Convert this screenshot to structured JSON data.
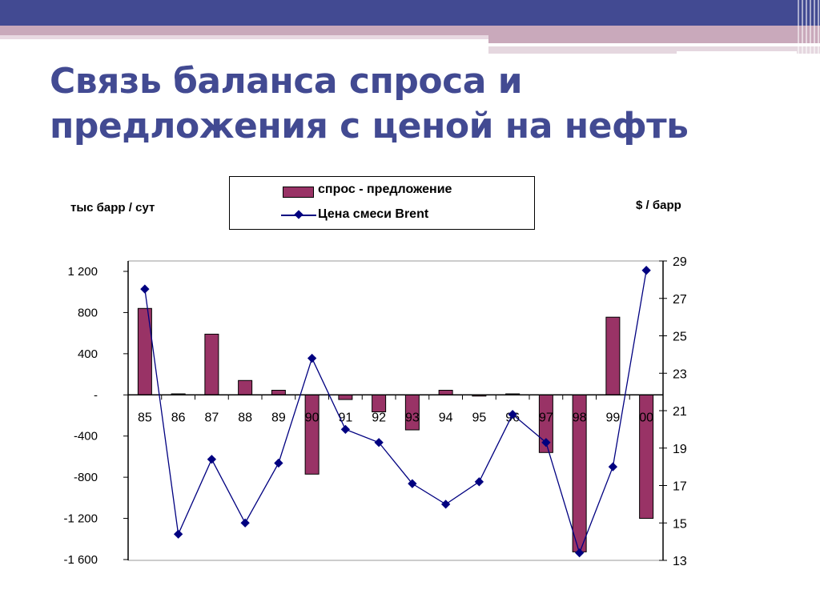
{
  "slide": {
    "title_line1": "Связь баланса спроса и",
    "title_line2": "предложения с ценой на нефть",
    "colors": {
      "header_band": "#424a92",
      "accent_pink": "#c9a9bb",
      "title": "#424a92"
    }
  },
  "legend": {
    "bar_label": "спрос - предложение",
    "line_label": "Цена смеси Brent"
  },
  "axes": {
    "left_unit": "тыс барр / сут",
    "right_unit": "$ / барр"
  },
  "chart_data": {
    "type": "bar+line",
    "title": "Связь баланса спроса и предложения с ценой на нефть",
    "categories": [
      "85",
      "86",
      "87",
      "88",
      "89",
      "90",
      "91",
      "92",
      "93",
      "94",
      "95",
      "96",
      "97",
      "98",
      "99",
      "00"
    ],
    "series": [
      {
        "name": "спрос - предложение",
        "type": "bar",
        "axis": "left",
        "color": "#993366",
        "values": [
          840,
          10,
          590,
          140,
          45,
          -770,
          -45,
          -165,
          -340,
          45,
          0,
          10,
          -560,
          -1525,
          755,
          -1200
        ]
      },
      {
        "name": "Цена смеси Brent",
        "type": "line",
        "axis": "right",
        "color": "#000080",
        "marker": "diamond",
        "values": [
          27.5,
          14.4,
          18.4,
          15.0,
          18.2,
          23.8,
          20.0,
          19.3,
          17.1,
          16.0,
          17.2,
          20.8,
          19.3,
          13.4,
          18.0,
          28.5
        ]
      }
    ],
    "ylabel": "тыс барр / сут",
    "ylabel_right": "$ / барр",
    "ylim": [
      -1600,
      1200
    ],
    "ylim_right": [
      13,
      29
    ],
    "yticks": [
      1200,
      800,
      400,
      0,
      -400,
      -800,
      -1200,
      -1600
    ],
    "ytick_labels": [
      "1 200",
      "800",
      "400",
      "-",
      "-400",
      "-800",
      "-1 200",
      "-1 600"
    ],
    "yticks_right": [
      29,
      27,
      25,
      23,
      21,
      19,
      17,
      15,
      13
    ],
    "grid": false,
    "legend_position": "top"
  }
}
